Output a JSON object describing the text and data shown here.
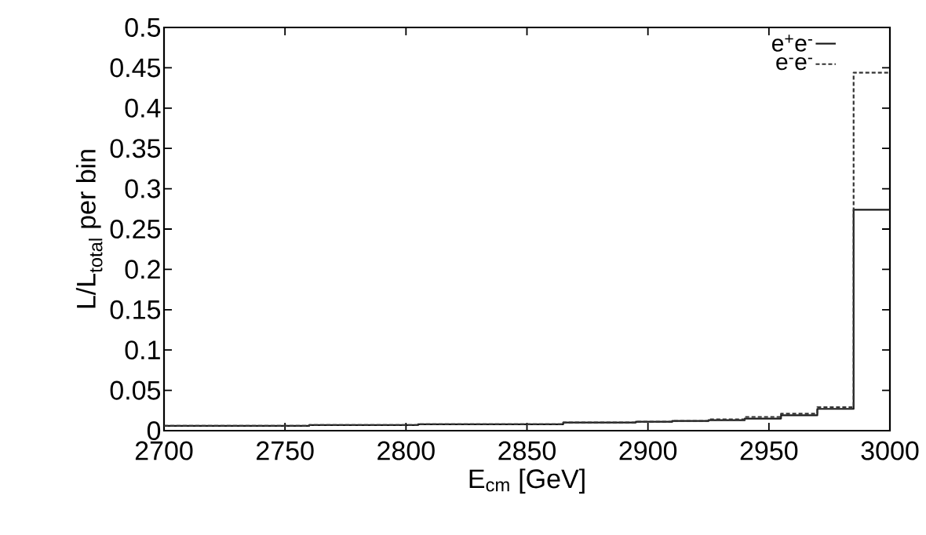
{
  "chart_data": {
    "type": "histogram",
    "xlabel": "E$_{cm}$ [GeV]",
    "ylabel": "L/L$_{total}$ per bin",
    "bins": [
      2700,
      2715,
      2730,
      2745,
      2760,
      2775,
      2790,
      2805,
      2820,
      2835,
      2850,
      2865,
      2880,
      2895,
      2910,
      2925,
      2940,
      2955,
      2970,
      2985,
      3000
    ],
    "series": [
      {
        "name": "e$^{+}$e$^{-}$",
        "color": "#1a1a1a",
        "line_style": "solid",
        "values": [
          0.006,
          0.006,
          0.006,
          0.006,
          0.007,
          0.007,
          0.007,
          0.008,
          0.008,
          0.008,
          0.008,
          0.01,
          0.01,
          0.011,
          0.012,
          0.013,
          0.015,
          0.019,
          0.027,
          0.274
        ]
      },
      {
        "name": "e$^{-}$e$^{-}$",
        "color": "#333333",
        "line_style": "dashed",
        "values": [
          0.006,
          0.006,
          0.006,
          0.006,
          0.007,
          0.007,
          0.007,
          0.008,
          0.008,
          0.008,
          0.008,
          0.01,
          0.01,
          0.011,
          0.012,
          0.014,
          0.017,
          0.021,
          0.029,
          0.444
        ]
      }
    ],
    "xlim": [
      2700,
      3000
    ],
    "ylim": [
      0,
      0.5
    ],
    "xticks": [
      2700,
      2750,
      2800,
      2850,
      2900,
      2950,
      3000
    ],
    "yticks": [
      0,
      0.05,
      0.1,
      0.15,
      0.2,
      0.25,
      0.3,
      0.35,
      0.4,
      0.45,
      0.5
    ],
    "legend": "top right"
  }
}
